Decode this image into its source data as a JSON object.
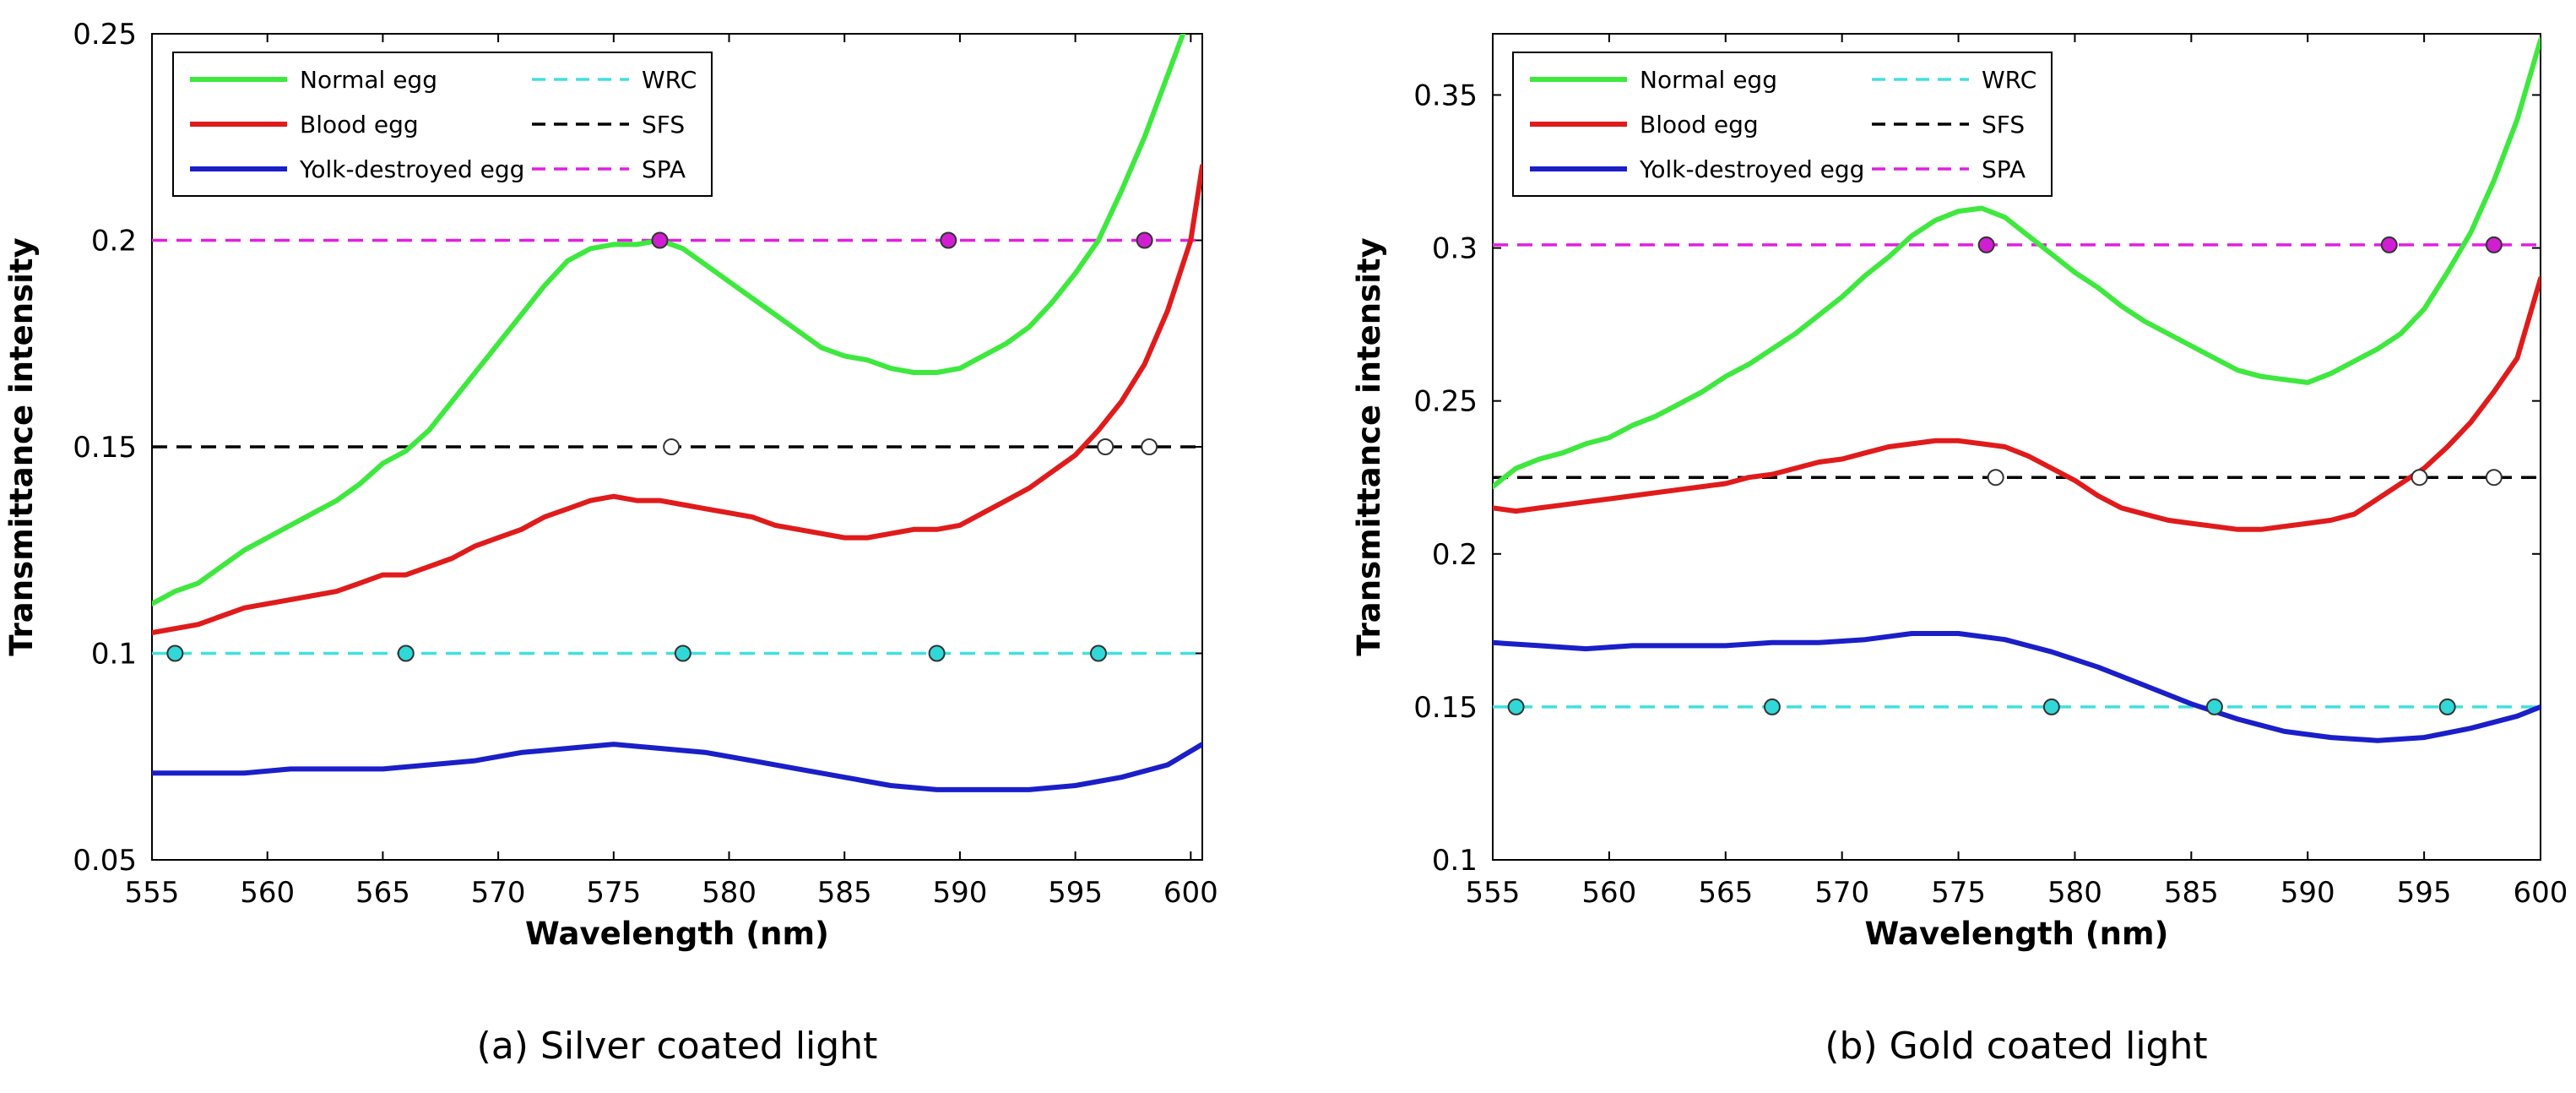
{
  "colors": {
    "normal": "#3ee83e",
    "blood": "#e01b1b",
    "yolk": "#1a1fc8",
    "wrc": "#40e0e0",
    "sfs": "#000000",
    "spa": "#e020e0",
    "wrc_marker": "#30d8d8",
    "sfs_marker": "#ffffff",
    "spa_marker": "#d21ed2"
  },
  "chart_data": [
    {
      "type": "line",
      "caption": "(a) Silver coated light",
      "xlabel": "Wavelength (nm)",
      "ylabel": "Transmittance intensity",
      "xlim": [
        555,
        600.5
      ],
      "ylim": [
        0.05,
        0.25
      ],
      "xticks": [
        "555",
        "560",
        "565",
        "570",
        "575",
        "580",
        "585",
        "590",
        "595",
        "600"
      ],
      "yticks": [
        "0.05",
        "0.1",
        "0.15",
        "0.2",
        "0.25"
      ],
      "grid": false,
      "legend_position": "top-left",
      "legend": [
        {
          "label": "Normal egg",
          "key": "normal",
          "dashed": false
        },
        {
          "label": "Blood egg",
          "key": "blood",
          "dashed": false
        },
        {
          "label": "Yolk-destroyed egg",
          "key": "yolk",
          "dashed": false
        },
        {
          "label": "WRC",
          "key": "wrc",
          "dashed": true
        },
        {
          "label": "SFS",
          "key": "sfs",
          "dashed": true
        },
        {
          "label": "SPA",
          "key": "spa",
          "dashed": true
        }
      ],
      "series": [
        {
          "name": "Normal egg",
          "key": "normal",
          "x": [
            555,
            556,
            557,
            558,
            559,
            560,
            561,
            562,
            563,
            564,
            565,
            566,
            567,
            568,
            569,
            570,
            571,
            572,
            573,
            574,
            575,
            576,
            577,
            578,
            579,
            580,
            581,
            582,
            583,
            584,
            585,
            586,
            587,
            588,
            589,
            590,
            591,
            592,
            593,
            594,
            595,
            596,
            597,
            598,
            599,
            600
          ],
          "y": [
            0.112,
            0.115,
            0.117,
            0.121,
            0.125,
            0.128,
            0.131,
            0.134,
            0.137,
            0.141,
            0.146,
            0.149,
            0.154,
            0.161,
            0.168,
            0.175,
            0.182,
            0.189,
            0.195,
            0.198,
            0.199,
            0.199,
            0.2,
            0.198,
            0.194,
            0.19,
            0.186,
            0.182,
            0.178,
            0.174,
            0.172,
            0.171,
            0.169,
            0.168,
            0.168,
            0.169,
            0.172,
            0.175,
            0.179,
            0.185,
            0.192,
            0.2,
            0.212,
            0.225,
            0.24,
            0.255
          ]
        },
        {
          "name": "Blood egg",
          "key": "blood",
          "x": [
            555,
            556,
            557,
            558,
            559,
            560,
            561,
            562,
            563,
            564,
            565,
            566,
            567,
            568,
            569,
            570,
            571,
            572,
            573,
            574,
            575,
            576,
            577,
            578,
            579,
            580,
            581,
            582,
            583,
            584,
            585,
            586,
            587,
            588,
            589,
            590,
            591,
            592,
            593,
            594,
            595,
            596,
            597,
            598,
            599,
            600,
            600.5
          ],
          "y": [
            0.105,
            0.106,
            0.107,
            0.109,
            0.111,
            0.112,
            0.113,
            0.114,
            0.115,
            0.117,
            0.119,
            0.119,
            0.121,
            0.123,
            0.126,
            0.128,
            0.13,
            0.133,
            0.135,
            0.137,
            0.138,
            0.137,
            0.137,
            0.136,
            0.135,
            0.134,
            0.133,
            0.131,
            0.13,
            0.129,
            0.128,
            0.128,
            0.129,
            0.13,
            0.13,
            0.131,
            0.134,
            0.137,
            0.14,
            0.144,
            0.148,
            0.154,
            0.161,
            0.17,
            0.183,
            0.2,
            0.218
          ]
        },
        {
          "name": "Yolk-destroyed egg",
          "key": "yolk",
          "x": [
            555,
            557,
            559,
            561,
            563,
            565,
            567,
            569,
            571,
            573,
            575,
            577,
            579,
            581,
            583,
            585,
            587,
            589,
            591,
            593,
            595,
            597,
            599,
            600.5
          ],
          "y": [
            0.071,
            0.071,
            0.071,
            0.072,
            0.072,
            0.072,
            0.073,
            0.074,
            0.076,
            0.077,
            0.078,
            0.077,
            0.076,
            0.074,
            0.072,
            0.07,
            0.068,
            0.067,
            0.067,
            0.067,
            0.068,
            0.07,
            0.073,
            0.078
          ]
        }
      ],
      "hlines": [
        {
          "key": "wrc",
          "y": 0.1,
          "markers_x": [
            556,
            566,
            578,
            589,
            596
          ]
        },
        {
          "key": "sfs",
          "y": 0.15,
          "markers_x": [
            577.5,
            596.3,
            598.2
          ]
        },
        {
          "key": "spa",
          "y": 0.2,
          "markers_x": [
            577,
            589.5,
            598
          ]
        }
      ]
    },
    {
      "type": "line",
      "caption": "(b) Gold coated light",
      "xlabel": "Wavelength (nm)",
      "ylabel": "Transmittance intensity",
      "xlim": [
        555,
        600
      ],
      "ylim": [
        0.1,
        0.37
      ],
      "xticks": [
        "555",
        "560",
        "565",
        "570",
        "575",
        "580",
        "585",
        "590",
        "595",
        "600"
      ],
      "yticks": [
        "0.1",
        "0.15",
        "0.2",
        "0.25",
        "0.3",
        "0.35"
      ],
      "grid": false,
      "legend_position": "top-left",
      "legend": [
        {
          "label": "Normal egg",
          "key": "normal",
          "dashed": false
        },
        {
          "label": "Blood egg",
          "key": "blood",
          "dashed": false
        },
        {
          "label": "Yolk-destroyed egg",
          "key": "yolk",
          "dashed": false
        },
        {
          "label": "WRC",
          "key": "wrc",
          "dashed": true
        },
        {
          "label": "SFS",
          "key": "sfs",
          "dashed": true
        },
        {
          "label": "SPA",
          "key": "spa",
          "dashed": true
        }
      ],
      "series": [
        {
          "name": "Normal egg",
          "key": "normal",
          "x": [
            555,
            556,
            557,
            558,
            559,
            560,
            561,
            562,
            563,
            564,
            565,
            566,
            567,
            568,
            569,
            570,
            571,
            572,
            573,
            574,
            575,
            576,
            577,
            578,
            579,
            580,
            581,
            582,
            583,
            584,
            585,
            586,
            587,
            588,
            589,
            590,
            591,
            592,
            593,
            594,
            595,
            596,
            597,
            598,
            599,
            600
          ],
          "y": [
            0.222,
            0.228,
            0.231,
            0.233,
            0.236,
            0.238,
            0.242,
            0.245,
            0.249,
            0.253,
            0.258,
            0.262,
            0.267,
            0.272,
            0.278,
            0.284,
            0.291,
            0.297,
            0.304,
            0.309,
            0.312,
            0.313,
            0.31,
            0.304,
            0.298,
            0.292,
            0.287,
            0.281,
            0.276,
            0.272,
            0.268,
            0.264,
            0.26,
            0.258,
            0.257,
            0.256,
            0.259,
            0.263,
            0.267,
            0.272,
            0.28,
            0.292,
            0.305,
            0.322,
            0.342,
            0.368
          ]
        },
        {
          "name": "Blood egg",
          "key": "blood",
          "x": [
            555,
            556,
            557,
            558,
            559,
            560,
            561,
            562,
            563,
            564,
            565,
            566,
            567,
            568,
            569,
            570,
            571,
            572,
            573,
            574,
            575,
            576,
            577,
            578,
            579,
            580,
            581,
            582,
            583,
            584,
            585,
            586,
            587,
            588,
            589,
            590,
            591,
            592,
            593,
            594,
            595,
            596,
            597,
            598,
            599,
            600
          ],
          "y": [
            0.215,
            0.214,
            0.215,
            0.216,
            0.217,
            0.218,
            0.219,
            0.22,
            0.221,
            0.222,
            0.223,
            0.225,
            0.226,
            0.228,
            0.23,
            0.231,
            0.233,
            0.235,
            0.236,
            0.237,
            0.237,
            0.236,
            0.235,
            0.232,
            0.228,
            0.224,
            0.219,
            0.215,
            0.213,
            0.211,
            0.21,
            0.209,
            0.208,
            0.208,
            0.209,
            0.21,
            0.211,
            0.213,
            0.218,
            0.223,
            0.228,
            0.235,
            0.243,
            0.253,
            0.264,
            0.29
          ]
        },
        {
          "name": "Yolk-destroyed egg",
          "key": "yolk",
          "x": [
            555,
            557,
            559,
            561,
            563,
            565,
            567,
            569,
            571,
            573,
            575,
            577,
            579,
            581,
            583,
            585,
            587,
            589,
            591,
            593,
            595,
            597,
            599,
            600
          ],
          "y": [
            0.171,
            0.17,
            0.169,
            0.17,
            0.17,
            0.17,
            0.171,
            0.171,
            0.172,
            0.174,
            0.174,
            0.172,
            0.168,
            0.163,
            0.157,
            0.151,
            0.146,
            0.142,
            0.14,
            0.139,
            0.14,
            0.143,
            0.147,
            0.15
          ]
        }
      ],
      "hlines": [
        {
          "key": "wrc",
          "y": 0.15,
          "markers_x": [
            556,
            567,
            579,
            586,
            596
          ]
        },
        {
          "key": "sfs",
          "y": 0.225,
          "markers_x": [
            576.6,
            594.8,
            598
          ]
        },
        {
          "key": "spa",
          "y": 0.301,
          "markers_x": [
            576.2,
            593.5,
            598
          ]
        }
      ]
    }
  ]
}
